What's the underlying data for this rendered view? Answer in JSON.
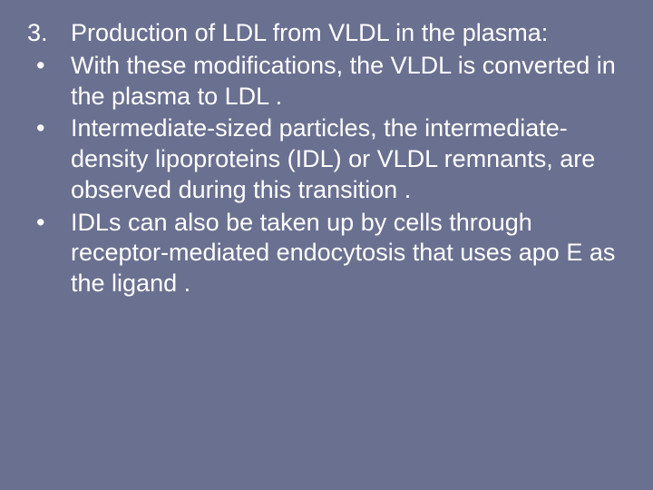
{
  "background_color": "#6a7090",
  "text_color": "#ffffff",
  "font_family": "Arial",
  "font_size_pt": 20,
  "line_height": 1.25,
  "heading": {
    "number": "3.",
    "text": "Production of LDL from VLDL in the plasma:"
  },
  "bullets": [
    {
      "marker": "•",
      "text": "With these modifications, the VLDL is converted in the plasma to LDL ."
    },
    {
      "marker": "•",
      "text": "Intermediate-sized particles, the intermediate-density lipoproteins (IDL) or VLDL remnants, are observed during this transition ."
    },
    {
      "marker": "•",
      "text": "IDLs can also be taken up by cells through receptor-mediated endocytosis that uses apo E as the ligand ."
    }
  ]
}
